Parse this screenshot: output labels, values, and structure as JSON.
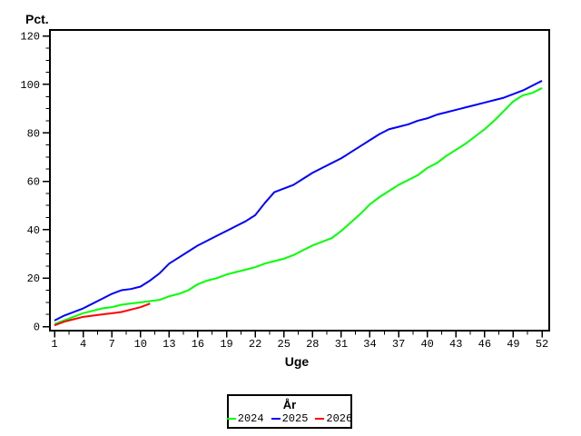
{
  "y_axis": {
    "label": "Pct.",
    "major_ticks": [
      0,
      20,
      40,
      60,
      80,
      100,
      120
    ],
    "minor_step": 5,
    "min": 0,
    "max": 120
  },
  "x_axis": {
    "label": "Uge",
    "major_ticks": [
      1,
      4,
      7,
      10,
      13,
      16,
      19,
      22,
      25,
      28,
      31,
      34,
      37,
      40,
      43,
      46,
      49,
      52
    ],
    "min": 1,
    "max": 52
  },
  "legend": {
    "title": "År",
    "entries": [
      {
        "label": "2024",
        "color": "#00ff00"
      },
      {
        "label": "2025",
        "color": "#0000ff"
      },
      {
        "label": "2026",
        "color": "#ff0000"
      }
    ]
  },
  "colors": {
    "axis": "#000000",
    "background": "#ffffff"
  },
  "chart_data": {
    "type": "line",
    "title": "",
    "xlabel": "Uge",
    "ylabel": "Pct.",
    "xlim": [
      1,
      52
    ],
    "ylim": [
      0,
      120
    ],
    "grid": false,
    "legend_position": "bottom-center",
    "x": [
      1,
      2,
      3,
      4,
      5,
      6,
      7,
      8,
      9,
      10,
      11,
      12,
      13,
      14,
      15,
      16,
      17,
      18,
      19,
      20,
      21,
      22,
      23,
      24,
      25,
      26,
      27,
      28,
      29,
      30,
      31,
      32,
      33,
      34,
      35,
      36,
      37,
      38,
      39,
      40,
      41,
      42,
      43,
      44,
      45,
      46,
      47,
      48,
      49,
      50,
      51,
      52
    ],
    "series": [
      {
        "name": "2024",
        "color": "#00ff00",
        "values": [
          1,
          2.5,
          4,
          5.5,
          6.5,
          7.5,
          8,
          9,
          9.5,
          10,
          10.5,
          11,
          12.5,
          13.5,
          15,
          17.5,
          19,
          20,
          21.5,
          22.5,
          23.5,
          24.5,
          26,
          27,
          28,
          29.5,
          31.5,
          33.5,
          35,
          36.5,
          39.5,
          43,
          46.5,
          50.5,
          53.5,
          56,
          58.5,
          60.5,
          62.5,
          65.5,
          67.5,
          70.5,
          73,
          75.5,
          78.5,
          81.5,
          85,
          89,
          93,
          95.5,
          96.5,
          98.5
        ]
      },
      {
        "name": "2025",
        "color": "#0000ff",
        "values": [
          2.5,
          4.5,
          6,
          7.5,
          9.5,
          11.5,
          13.5,
          15,
          15.5,
          16.5,
          19,
          22,
          26,
          28.5,
          31,
          33.5,
          35.5,
          37.5,
          39.5,
          41.5,
          43.5,
          46,
          51,
          55.5,
          57,
          58.5,
          61,
          63.5,
          65.5,
          67.5,
          69.5,
          72,
          74.5,
          77,
          79.5,
          81.5,
          82.5,
          83.5,
          85,
          86,
          87.5,
          88.5,
          89.5,
          90.5,
          91.5,
          92.5,
          93.5,
          94.5,
          96,
          97.5,
          99.5,
          101.5
        ]
      },
      {
        "name": "2026",
        "color": "#ff0000",
        "values": [
          0.5,
          2,
          3,
          4,
          4.5,
          5,
          5.5,
          6,
          7,
          8,
          9.5
        ]
      }
    ]
  }
}
